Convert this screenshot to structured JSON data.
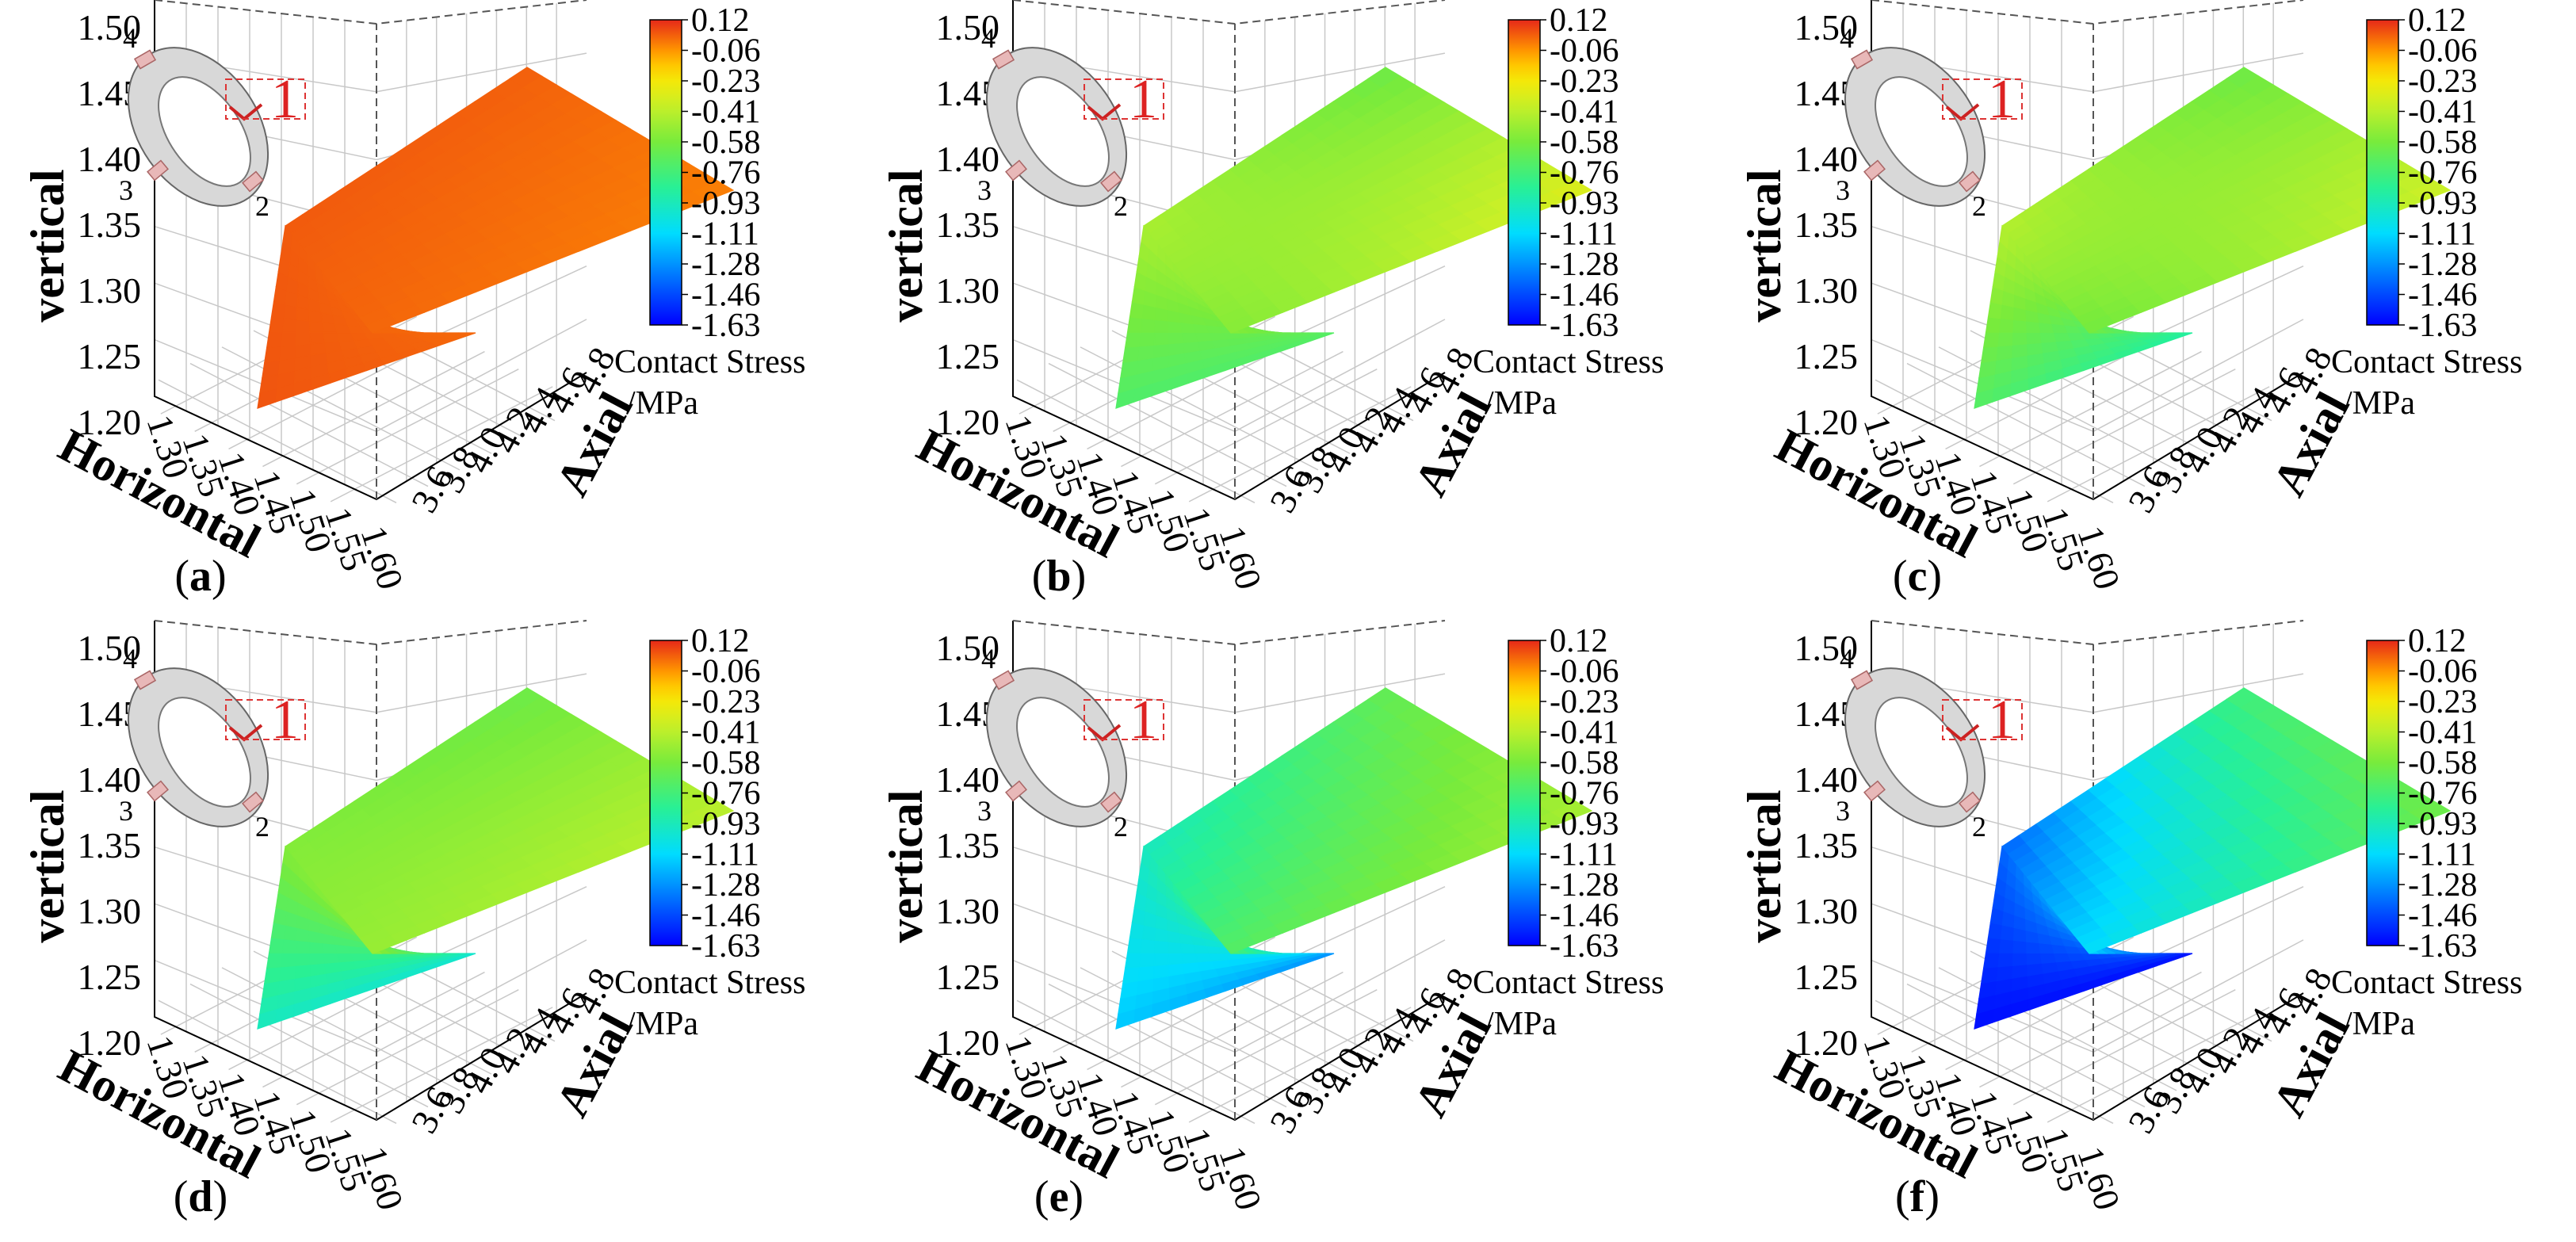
{
  "chart_data": [
    {
      "type": "surface3d",
      "panel_label": "a",
      "xlabel": "Horizontal",
      "ylabel": "Axial",
      "zlabel": "vertical",
      "x_ticks": [
        "1.30",
        "1.35",
        "1.40",
        "1.45",
        "1.50",
        "1.55",
        "1.60"
      ],
      "y_ticks": [
        "3.6",
        "3.8",
        "4.0",
        "4.2",
        "4.4",
        "4.6",
        "4.8"
      ],
      "z_ticks": [
        "1.20",
        "1.25",
        "1.30",
        "1.35",
        "1.40",
        "1.45",
        "1.50"
      ],
      "colorbar": {
        "title_line1": "Contact Stress",
        "title_line2": "/MPa",
        "ticks": [
          "0.12",
          "-0.06",
          "-0.23",
          "-0.41",
          "-0.58",
          "-0.76",
          "-0.93",
          "-1.11",
          "-1.28",
          "-1.46",
          "-1.63"
        ],
        "range": [
          -1.63,
          0.12
        ]
      },
      "inset_labels": [
        "1",
        "2",
        "3",
        "4"
      ],
      "stress_corners": {
        "bottom": 0.05,
        "knee_front": 0.04,
        "knee_back": 0.02,
        "top_far": 0.03,
        "right_far": -0.02,
        "back_bottom": 0.02
      }
    },
    {
      "type": "surface3d",
      "panel_label": "b",
      "xlabel": "Horizontal",
      "ylabel": "Axial",
      "zlabel": "vertical",
      "x_ticks": [
        "1.30",
        "1.35",
        "1.40",
        "1.45",
        "1.50",
        "1.55",
        "1.60"
      ],
      "y_ticks": [
        "3.6",
        "3.8",
        "4.0",
        "4.2",
        "4.4",
        "4.6",
        "4.8"
      ],
      "z_ticks": [
        "1.20",
        "1.25",
        "1.30",
        "1.35",
        "1.40",
        "1.45",
        "1.50"
      ],
      "colorbar": {
        "title_line1": "Contact Stress",
        "title_line2": "/MPa",
        "ticks": [
          "0.12",
          "-0.06",
          "-0.23",
          "-0.41",
          "-0.58",
          "-0.76",
          "-0.93",
          "-1.11",
          "-1.28",
          "-1.46",
          "-1.63"
        ],
        "range": [
          -1.63,
          0.12
        ]
      },
      "inset_labels": [
        "1",
        "2",
        "3",
        "4"
      ],
      "stress_corners": {
        "bottom": -0.72,
        "knee_front": -0.45,
        "knee_back": -0.55,
        "top_far": -0.62,
        "right_far": -0.3,
        "back_bottom": -0.7
      }
    },
    {
      "type": "surface3d",
      "panel_label": "c",
      "xlabel": "Horizontal",
      "ylabel": "Axial",
      "zlabel": "vertical",
      "x_ticks": [
        "1.30",
        "1.35",
        "1.40",
        "1.45",
        "1.50",
        "1.55",
        "1.60"
      ],
      "y_ticks": [
        "3.6",
        "3.8",
        "4.0",
        "4.2",
        "4.4",
        "4.6",
        "4.8"
      ],
      "z_ticks": [
        "1.20",
        "1.25",
        "1.30",
        "1.35",
        "1.40",
        "1.45",
        "1.50"
      ],
      "colorbar": {
        "title_line1": "Contact Stress",
        "title_line2": "/MPa",
        "ticks": [
          "0.12",
          "-0.06",
          "-0.23",
          "-0.41",
          "-0.58",
          "-0.76",
          "-0.93",
          "-1.11",
          "-1.28",
          "-1.46",
          "-1.63"
        ],
        "range": [
          -1.63,
          0.12
        ]
      },
      "inset_labels": [
        "1",
        "2",
        "3",
        "4"
      ],
      "stress_corners": {
        "bottom": -0.7,
        "knee_front": -0.42,
        "knee_back": -0.6,
        "top_far": -0.62,
        "right_far": -0.35,
        "back_bottom": -0.88
      }
    },
    {
      "type": "surface3d",
      "panel_label": "d",
      "xlabel": "Horizontal",
      "ylabel": "Axial",
      "zlabel": "vertical",
      "x_ticks": [
        "1.30",
        "1.35",
        "1.40",
        "1.45",
        "1.50",
        "1.55",
        "1.60"
      ],
      "y_ticks": [
        "3.6",
        "3.8",
        "4.0",
        "4.2",
        "4.4",
        "4.6",
        "4.8"
      ],
      "z_ticks": [
        "1.20",
        "1.25",
        "1.30",
        "1.35",
        "1.40",
        "1.45",
        "1.50"
      ],
      "colorbar": {
        "title_line1": "Contact Stress",
        "title_line2": "/MPa",
        "ticks": [
          "0.12",
          "-0.06",
          "-0.23",
          "-0.41",
          "-0.58",
          "-0.76",
          "-0.93",
          "-1.11",
          "-1.28",
          "-1.46",
          "-1.63"
        ],
        "range": [
          -1.63,
          0.12
        ]
      },
      "inset_labels": [
        "1",
        "2",
        "3",
        "4"
      ],
      "stress_corners": {
        "bottom": -0.95,
        "knee_front": -0.55,
        "knee_back": -0.5,
        "top_far": -0.62,
        "right_far": -0.4,
        "back_bottom": -1.0
      }
    },
    {
      "type": "surface3d",
      "panel_label": "e",
      "xlabel": "Horizontal",
      "ylabel": "Axial",
      "zlabel": "vertical",
      "x_ticks": [
        "1.30",
        "1.35",
        "1.40",
        "1.45",
        "1.50",
        "1.55",
        "1.60"
      ],
      "y_ticks": [
        "3.6",
        "3.8",
        "4.0",
        "4.2",
        "4.4",
        "4.6",
        "4.8"
      ],
      "z_ticks": [
        "1.20",
        "1.25",
        "1.30",
        "1.35",
        "1.40",
        "1.45",
        "1.50"
      ],
      "colorbar": {
        "title_line1": "Contact Stress",
        "title_line2": "/MPa",
        "ticks": [
          "0.12",
          "-0.06",
          "-0.23",
          "-0.41",
          "-0.58",
          "-0.76",
          "-0.93",
          "-1.11",
          "-1.28",
          "-1.46",
          "-1.63"
        ],
        "range": [
          -1.63,
          0.12
        ]
      },
      "inset_labels": [
        "1",
        "2",
        "3",
        "4"
      ],
      "stress_corners": {
        "bottom": -1.15,
        "knee_front": -0.95,
        "knee_back": -0.7,
        "top_far": -0.65,
        "right_far": -0.45,
        "back_bottom": -1.3
      }
    },
    {
      "type": "surface3d",
      "panel_label": "f",
      "xlabel": "Horizontal",
      "ylabel": "Axial",
      "zlabel": "vertical",
      "x_ticks": [
        "1.30",
        "1.35",
        "1.40",
        "1.45",
        "1.50",
        "1.55",
        "1.60"
      ],
      "y_ticks": [
        "3.6",
        "3.8",
        "4.0",
        "4.2",
        "4.4",
        "4.6",
        "4.8"
      ],
      "z_ticks": [
        "1.20",
        "1.25",
        "1.30",
        "1.35",
        "1.40",
        "1.45",
        "1.50"
      ],
      "colorbar": {
        "title_line1": "Contact Stress",
        "title_line2": "/MPa",
        "ticks": [
          "0.12",
          "-0.06",
          "-0.23",
          "-0.41",
          "-0.58",
          "-0.76",
          "-0.93",
          "-1.11",
          "-1.28",
          "-1.46",
          "-1.63"
        ],
        "range": [
          -1.63,
          0.12
        ]
      },
      "inset_labels": [
        "1",
        "2",
        "3",
        "4"
      ],
      "stress_corners": {
        "bottom": -1.6,
        "knee_front": -1.4,
        "knee_back": -1.1,
        "top_far": -0.75,
        "right_far": -0.6,
        "back_bottom": -1.6
      }
    }
  ]
}
